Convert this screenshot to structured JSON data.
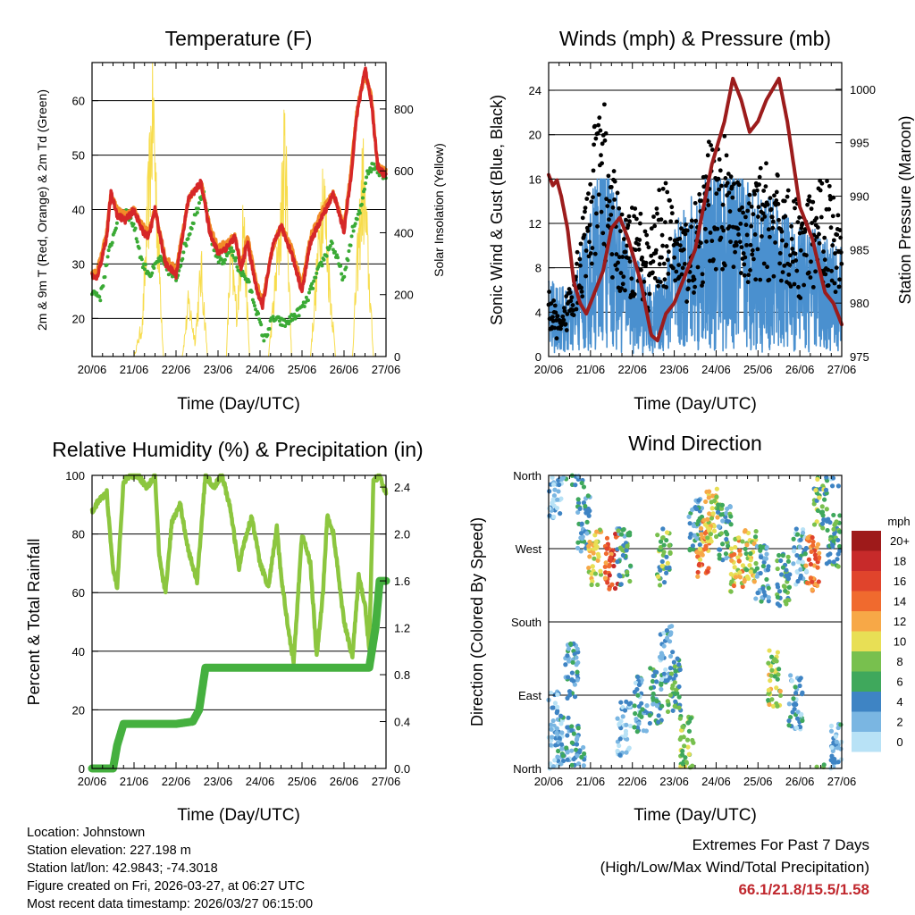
{
  "colors": {
    "temp_2m": "#d62728",
    "temp_9m": "#f28c28",
    "dewpoint": "#3aaa35",
    "solar": "#f7dc4c",
    "wind": "#4a90cf",
    "gust": "#000000",
    "pressure": "#9c1c1c",
    "rh": "#8cc63f",
    "precip": "#45b03f",
    "extremes": "#c0272d"
  },
  "chart_data": [
    {
      "id": "temperature",
      "type": "line",
      "title": "Temperature (F)",
      "xlabel": "Time (Day/UTC)",
      "ylabel": "2m & 9m T (Red, Orange) & 2m Td (Green)",
      "y2label": "Solar Insolation (Yellow)",
      "xticks": [
        "20/06",
        "21/06",
        "22/06",
        "23/06",
        "24/06",
        "25/06",
        "26/06",
        "27/06"
      ],
      "xlim": [
        0,
        7
      ],
      "ylim": [
        13,
        67
      ],
      "yticks": [
        20,
        30,
        40,
        50,
        60
      ],
      "y2lim": [
        0,
        950
      ],
      "y2ticks": [
        0,
        200,
        400,
        600,
        800
      ],
      "series": [
        {
          "name": "2m T",
          "axis": "left",
          "x": [
            0,
            0.1,
            0.2,
            0.35,
            0.45,
            0.6,
            0.8,
            1.0,
            1.2,
            1.35,
            1.5,
            1.75,
            2.0,
            2.3,
            2.6,
            2.8,
            3.0,
            3.2,
            3.4,
            3.55,
            3.7,
            3.9,
            4.05,
            4.3,
            4.5,
            4.75,
            5.0,
            5.2,
            5.5,
            5.75,
            6.0,
            6.15,
            6.3,
            6.5,
            6.65,
            6.8,
            7.0
          ],
          "y": [
            28,
            27,
            30,
            35,
            43,
            39,
            38,
            40,
            36,
            35,
            40,
            30,
            28,
            42,
            45,
            36,
            32,
            33,
            35,
            29,
            34,
            26,
            22,
            33,
            37,
            32,
            25,
            34,
            39,
            43,
            36,
            45,
            57,
            66,
            60,
            48,
            46
          ]
        },
        {
          "name": "9m T",
          "axis": "left",
          "x": [
            0,
            0.1,
            0.2,
            0.35,
            0.45,
            0.6,
            0.8,
            1.0,
            1.2,
            1.35,
            1.5,
            1.75,
            2.0,
            2.3,
            2.6,
            2.8,
            3.0,
            3.2,
            3.4,
            3.55,
            3.7,
            3.9,
            4.05,
            4.3,
            4.5,
            4.75,
            5.0,
            5.2,
            5.5,
            5.75,
            6.0,
            6.15,
            6.3,
            6.5,
            6.65,
            6.8,
            7.0
          ],
          "y": [
            29,
            28,
            31,
            36,
            43,
            40,
            39,
            40,
            37,
            36,
            40,
            31,
            29,
            42,
            45,
            37,
            33,
            34,
            35,
            30,
            35,
            27,
            23,
            33,
            37,
            33,
            26,
            35,
            40,
            43,
            37,
            46,
            58,
            65,
            61,
            48,
            47
          ]
        },
        {
          "name": "2m Td",
          "axis": "left",
          "x": [
            0,
            0.2,
            0.4,
            0.6,
            0.8,
            1.0,
            1.2,
            1.4,
            1.6,
            1.8,
            2.0,
            2.2,
            2.5,
            2.65,
            2.9,
            3.1,
            3.3,
            3.5,
            3.7,
            3.9,
            4.1,
            4.3,
            4.6,
            4.9,
            5.1,
            5.4,
            5.7,
            6.0,
            6.2,
            6.4,
            6.55,
            6.7,
            7.0
          ],
          "y": [
            25,
            24,
            32,
            38,
            40,
            37,
            30,
            28,
            31,
            29,
            27,
            33,
            40,
            44,
            32,
            30,
            33,
            29,
            27,
            22,
            16,
            20,
            19,
            21,
            23,
            29,
            34,
            27,
            36,
            40,
            47,
            48,
            46
          ]
        },
        {
          "name": "Solar Insolation",
          "axis": "right",
          "x": [
            0,
            0.7,
            1.0,
            1.2,
            1.35,
            1.45,
            1.55,
            1.7,
            2.0,
            2.15,
            2.3,
            2.45,
            2.6,
            2.75,
            3.0,
            3.2,
            3.3,
            3.45,
            3.6,
            3.75,
            4.0,
            4.2,
            4.45,
            4.6,
            4.75,
            5.0,
            5.2,
            5.35,
            5.5,
            5.65,
            5.8,
            6.0,
            6.2,
            6.3,
            6.45,
            6.55,
            6.7,
            7.0
          ],
          "y": [
            0,
            0,
            0,
            120,
            600,
            940,
            520,
            0,
            0,
            0,
            200,
            60,
            320,
            0,
            0,
            0,
            380,
            160,
            520,
            0,
            0,
            0,
            400,
            780,
            0,
            0,
            0,
            300,
            650,
            280,
            0,
            0,
            0,
            300,
            660,
            420,
            0,
            0
          ]
        }
      ]
    },
    {
      "id": "winds",
      "type": "line",
      "title": "Winds (mph) & Pressure (mb)",
      "xlabel": "Time (Day/UTC)",
      "ylabel": "Sonic Wind & Gust (Blue, Black)",
      "y2label": "Station Pressure (Maroon)",
      "xticks": [
        "20/06",
        "21/06",
        "22/06",
        "23/06",
        "24/06",
        "25/06",
        "26/06",
        "27/06"
      ],
      "xlim": [
        0,
        7
      ],
      "ylim": [
        0,
        26.5
      ],
      "yticks": [
        0,
        4,
        8,
        12,
        16,
        20,
        24
      ],
      "y2lim": [
        975,
        1002.5
      ],
      "y2ticks": [
        975,
        980,
        985,
        990,
        995,
        1000
      ],
      "series": [
        {
          "name": "Sonic Wind",
          "axis": "left",
          "x": [
            0,
            0.5,
            1.0,
            1.3,
            1.6,
            2.0,
            2.5,
            3.0,
            3.5,
            4.0,
            4.5,
            5.0,
            5.5,
            6.0,
            6.5,
            7.0
          ],
          "y": [
            4,
            3,
            7,
            11,
            8,
            5,
            3,
            6,
            8,
            9,
            9,
            8,
            7,
            6,
            6,
            5
          ]
        },
        {
          "name": "Gust",
          "axis": "left",
          "x": [
            0,
            0.3,
            0.6,
            0.9,
            1.1,
            1.3,
            1.5,
            1.8,
            2.1,
            2.4,
            2.7,
            3.0,
            3.3,
            3.6,
            3.9,
            4.2,
            4.5,
            4.8,
            5.1,
            5.4,
            5.7,
            6.0,
            6.3,
            6.6,
            6.9
          ],
          "y": [
            6,
            3,
            9,
            14,
            20,
            23,
            17,
            12,
            14,
            10,
            16,
            13,
            12,
            14,
            20,
            19,
            15,
            14,
            17,
            16,
            15,
            13,
            14,
            16,
            14
          ]
        },
        {
          "name": "Station Pressure",
          "axis": "right",
          "x": [
            0,
            0.1,
            0.2,
            0.3,
            0.45,
            0.6,
            0.75,
            0.9,
            1.1,
            1.3,
            1.5,
            1.7,
            1.9,
            2.2,
            2.45,
            2.6,
            2.8,
            3.0,
            3.2,
            3.5,
            3.7,
            3.9,
            4.2,
            4.4,
            4.6,
            4.8,
            5.0,
            5.2,
            5.35,
            5.5,
            5.7,
            6.0,
            6.3,
            6.6,
            6.8,
            7.0
          ],
          "y": [
            992,
            991,
            991.5,
            990,
            987,
            982,
            980,
            979,
            981,
            983,
            987,
            988,
            986,
            982,
            977,
            976.5,
            979,
            980,
            982,
            985,
            989,
            993,
            997,
            1001,
            999,
            996,
            997,
            999,
            1000,
            1001,
            997,
            989,
            986,
            981,
            980,
            978
          ]
        }
      ]
    },
    {
      "id": "humidity",
      "type": "line",
      "title": "Relative Humidity (%) & Precipitation (in)",
      "xlabel": "Time (Day/UTC)",
      "ylabel": "Percent & Total Rainfall",
      "xticks": [
        "20/06",
        "21/06",
        "22/06",
        "23/06",
        "24/06",
        "25/06",
        "26/06",
        "27/06"
      ],
      "xlim": [
        0,
        7
      ],
      "ylim": [
        0,
        100
      ],
      "yticks": [
        0,
        20,
        40,
        60,
        80,
        100
      ],
      "y2lim": [
        0,
        2.5
      ],
      "y2ticks": [
        0.0,
        0.4,
        0.8,
        1.2,
        1.6,
        2.0,
        2.4
      ],
      "series": [
        {
          "name": "Relative Humidity",
          "axis": "left",
          "x": [
            0,
            0.2,
            0.35,
            0.5,
            0.6,
            0.75,
            0.9,
            1.1,
            1.3,
            1.5,
            1.6,
            1.75,
            1.9,
            2.1,
            2.3,
            2.5,
            2.7,
            2.9,
            3.1,
            3.3,
            3.5,
            3.6,
            3.8,
            4.0,
            4.2,
            4.4,
            4.5,
            4.65,
            4.8,
            5.0,
            5.2,
            5.35,
            5.5,
            5.6,
            5.75,
            6.0,
            6.2,
            6.35,
            6.5,
            6.6,
            6.7,
            6.85,
            7.0
          ],
          "y": [
            88,
            92,
            94,
            68,
            62,
            98,
            100,
            100,
            96,
            100,
            72,
            60,
            84,
            90,
            74,
            64,
            100,
            96,
            100,
            88,
            68,
            76,
            86,
            70,
            62,
            82,
            66,
            50,
            36,
            80,
            70,
            38,
            60,
            86,
            80,
            50,
            38,
            66,
            56,
            40,
            98,
            100,
            94
          ]
        },
        {
          "name": "Total Precipitation",
          "axis": "right",
          "x": [
            0,
            0.5,
            0.6,
            0.75,
            1.0,
            1.5,
            2.0,
            2.4,
            2.55,
            2.7,
            3.0,
            4.0,
            5.0,
            6.0,
            6.6,
            6.75,
            6.85,
            7.0
          ],
          "y": [
            0.0,
            0.0,
            0.2,
            0.38,
            0.38,
            0.38,
            0.38,
            0.4,
            0.5,
            0.86,
            0.86,
            0.86,
            0.86,
            0.86,
            0.86,
            1.2,
            1.6,
            1.6
          ]
        }
      ]
    },
    {
      "id": "direction",
      "type": "scatter",
      "title": "Wind Direction",
      "xlabel": "Time (Day/UTC)",
      "ylabel": "Direction (Colored By Speed)",
      "xticks": [
        "20/06",
        "21/06",
        "22/06",
        "23/06",
        "24/06",
        "25/06",
        "26/06",
        "27/06"
      ],
      "xlim": [
        0,
        7
      ],
      "ylim": [
        0,
        360
      ],
      "yticks": [
        "North",
        "East",
        "South",
        "West",
        "North"
      ],
      "ytick_values": [
        0,
        90,
        180,
        270,
        360
      ],
      "colorbar": {
        "title": "mph",
        "labels": [
          "20+",
          "18",
          "16",
          "14",
          "12",
          "10",
          "8",
          "6",
          "4",
          "2",
          "0"
        ],
        "colors": [
          "#9e1a1a",
          "#c72a2a",
          "#e0442c",
          "#f06a2e",
          "#f7a847",
          "#e8df55",
          "#78c04e",
          "#3fa85c",
          "#3e84c4",
          "#7ab6e2",
          "#b8e2f6"
        ]
      },
      "clusters": [
        {
          "x": 0.15,
          "y": 340,
          "speed": 2
        },
        {
          "x": 0.1,
          "y": 60,
          "speed": 3
        },
        {
          "x": 0.35,
          "y": 30,
          "speed": 4
        },
        {
          "x": 0.55,
          "y": 120,
          "speed": 5
        },
        {
          "x": 0.7,
          "y": 20,
          "speed": 5
        },
        {
          "x": 0.85,
          "y": 300,
          "speed": 5
        },
        {
          "x": 1.1,
          "y": 260,
          "speed": 11
        },
        {
          "x": 1.5,
          "y": 255,
          "speed": 16
        },
        {
          "x": 1.8,
          "y": 260,
          "speed": 6
        },
        {
          "x": 1.8,
          "y": 50,
          "speed": 3
        },
        {
          "x": 2.2,
          "y": 80,
          "speed": 4
        },
        {
          "x": 2.55,
          "y": 90,
          "speed": 6
        },
        {
          "x": 2.75,
          "y": 260,
          "speed": 8
        },
        {
          "x": 2.8,
          "y": 140,
          "speed": 4
        },
        {
          "x": 3.0,
          "y": 100,
          "speed": 7
        },
        {
          "x": 3.3,
          "y": 30,
          "speed": 9
        },
        {
          "x": 3.5,
          "y": 300,
          "speed": 5
        },
        {
          "x": 3.7,
          "y": 270,
          "speed": 14
        },
        {
          "x": 3.9,
          "y": 310,
          "speed": 11
        },
        {
          "x": 4.2,
          "y": 290,
          "speed": 6
        },
        {
          "x": 4.5,
          "y": 250,
          "speed": 12
        },
        {
          "x": 4.8,
          "y": 260,
          "speed": 10
        },
        {
          "x": 5.1,
          "y": 240,
          "speed": 5
        },
        {
          "x": 5.4,
          "y": 110,
          "speed": 10
        },
        {
          "x": 5.6,
          "y": 230,
          "speed": 7
        },
        {
          "x": 5.9,
          "y": 80,
          "speed": 4
        },
        {
          "x": 6.0,
          "y": 260,
          "speed": 4
        },
        {
          "x": 6.3,
          "y": 250,
          "speed": 15
        },
        {
          "x": 6.5,
          "y": 330,
          "speed": 8
        },
        {
          "x": 6.8,
          "y": 280,
          "speed": 7
        },
        {
          "x": 6.9,
          "y": 20,
          "speed": 4
        }
      ]
    }
  ],
  "info": {
    "location": "Location: Johnstown",
    "elevation": "Station elevation: 227.198 m",
    "latlon": "Station lat/lon: 42.9843; -74.3018",
    "created": "Figure created on Fri, 2026-03-27, at 06:27 UTC",
    "recent": "Most recent data timestamp: 2026/03/27 06:15:00"
  },
  "extremes": {
    "title": "Extremes For Past 7 Days",
    "subtitle": "(High/Low/Max Wind/Total Precipitation)",
    "values": "66.1/21.8/15.5/1.58"
  }
}
